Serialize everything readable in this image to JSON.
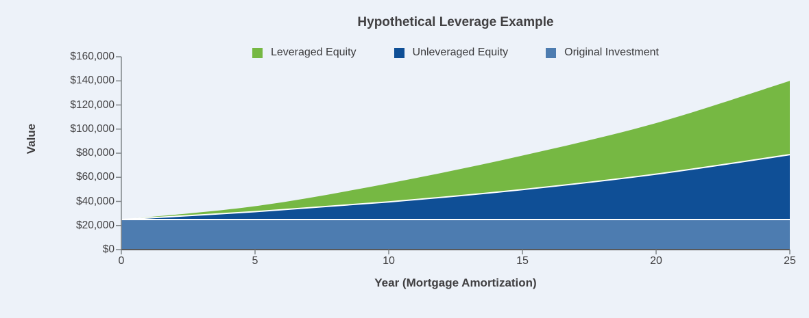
{
  "page": {
    "background_color": "#edf2f9",
    "text_color": "#414042",
    "axis_line_color": "#58595b",
    "tick_line_color": "#7f8488",
    "separator_color": "#ffffff"
  },
  "chart_data": {
    "type": "area",
    "stacking": "overlap",
    "title": "Hypothetical Leverage Example",
    "xlabel": "Year (Mortgage Amortization)",
    "ylabel": "Value",
    "x": [
      0,
      5,
      10,
      15,
      20,
      25
    ],
    "series": [
      {
        "name": "Leveraged Equity",
        "color": "#76b843",
        "values": [
          25000,
          36000,
          55000,
          78000,
          105000,
          140000
        ]
      },
      {
        "name": "Unleveraged Equity",
        "color": "#0f4f96",
        "values": [
          25000,
          31500,
          39600,
          49800,
          62600,
          78800
        ]
      },
      {
        "name": "Original Investment",
        "color": "#4d7cb0",
        "values": [
          25000,
          25000,
          25000,
          25000,
          25000,
          25000
        ]
      }
    ],
    "xlim": [
      0,
      25
    ],
    "ylim": [
      0,
      160000
    ],
    "x_ticks": [
      0,
      5,
      10,
      15,
      20,
      25
    ],
    "x_tick_labels": [
      "0",
      "5",
      "10",
      "15",
      "20",
      "25"
    ],
    "y_ticks": [
      0,
      20000,
      40000,
      60000,
      80000,
      100000,
      120000,
      140000,
      160000
    ],
    "y_tick_labels": [
      "$0",
      "$20,000",
      "$40,000",
      "$60,000",
      "$80,000",
      "$100,000",
      "$120,000",
      "$140,000",
      "$160,000"
    ],
    "legend_position": "top",
    "grid": false
  }
}
